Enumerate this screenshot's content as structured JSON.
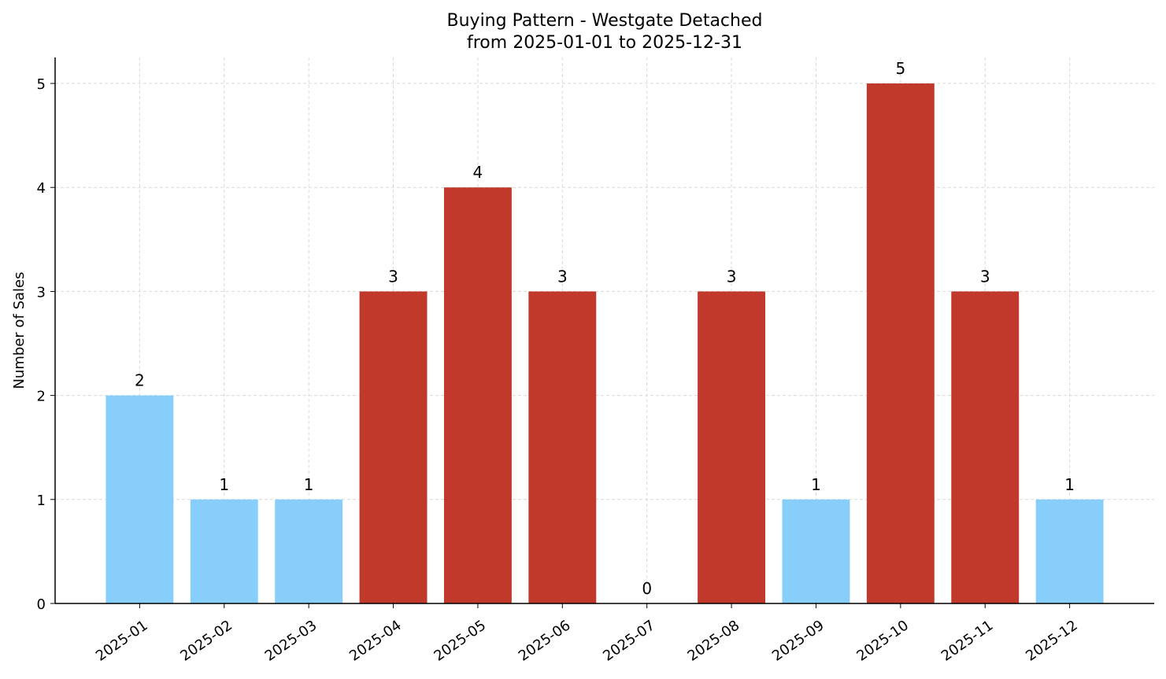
{
  "chart_data": {
    "type": "bar",
    "title": "Buying Pattern - Westgate Detached",
    "subtitle": "from 2025-01-01 to 2025-12-31",
    "xlabel": "",
    "ylabel": "Number of Sales",
    "categories": [
      "2025-01",
      "2025-02",
      "2025-03",
      "2025-04",
      "2025-05",
      "2025-06",
      "2025-07",
      "2025-08",
      "2025-09",
      "2025-10",
      "2025-11",
      "2025-12"
    ],
    "values": [
      2,
      1,
      1,
      3,
      4,
      3,
      0,
      3,
      1,
      5,
      3,
      1
    ],
    "bar_colors": [
      "#87CEFA",
      "#87CEFA",
      "#87CEFA",
      "#C0392B",
      "#C0392B",
      "#C0392B",
      "#87CEFA",
      "#C0392B",
      "#87CEFA",
      "#C0392B",
      "#C0392B",
      "#87CEFA"
    ],
    "ylim": [
      0,
      5.25
    ],
    "yticks": [
      0,
      1,
      2,
      3,
      4,
      5
    ],
    "grid": true,
    "data_labels": true
  }
}
